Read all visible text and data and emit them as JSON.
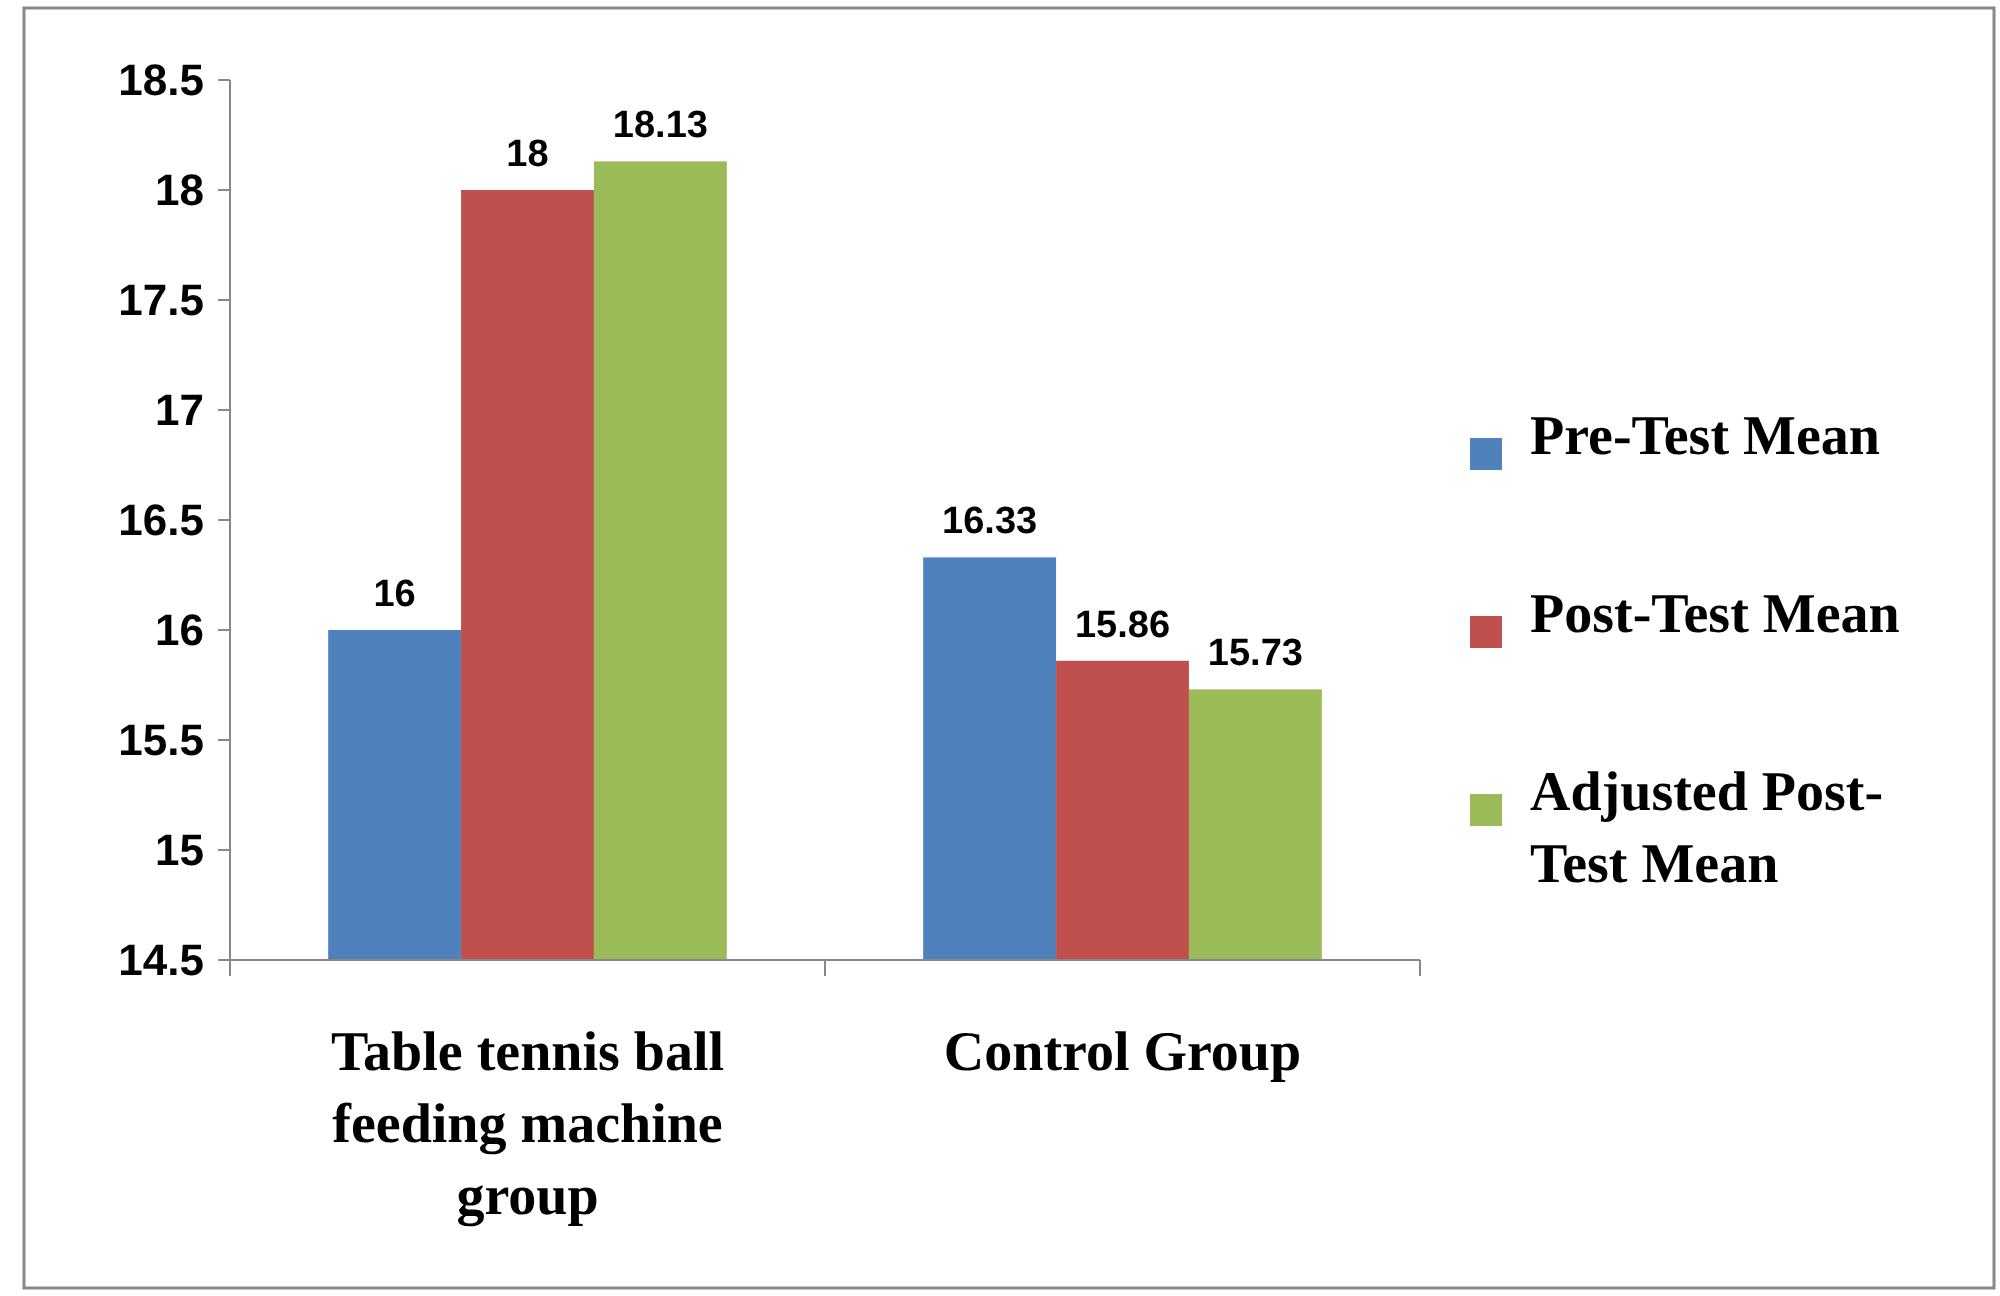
{
  "chart_data": {
    "type": "bar",
    "categories": [
      "Table tennis ball feeding machine group",
      "Control Group"
    ],
    "series": [
      {
        "name": "Pre-Test Mean",
        "color": "#4f81bd",
        "values": [
          16,
          16.33
        ]
      },
      {
        "name": "Post-Test Mean",
        "color": "#c0504d",
        "values": [
          18,
          15.86
        ]
      },
      {
        "name": "Adjusted Post-Test Mean",
        "color": "#9bbb59",
        "values": [
          18.13,
          15.73
        ]
      }
    ],
    "ylim": [
      14.5,
      18.5
    ],
    "yticks": [
      14.5,
      15,
      15.5,
      16,
      16.5,
      17,
      17.5,
      18,
      18.5
    ],
    "data_labels": true,
    "legend": "right",
    "grid": false
  }
}
